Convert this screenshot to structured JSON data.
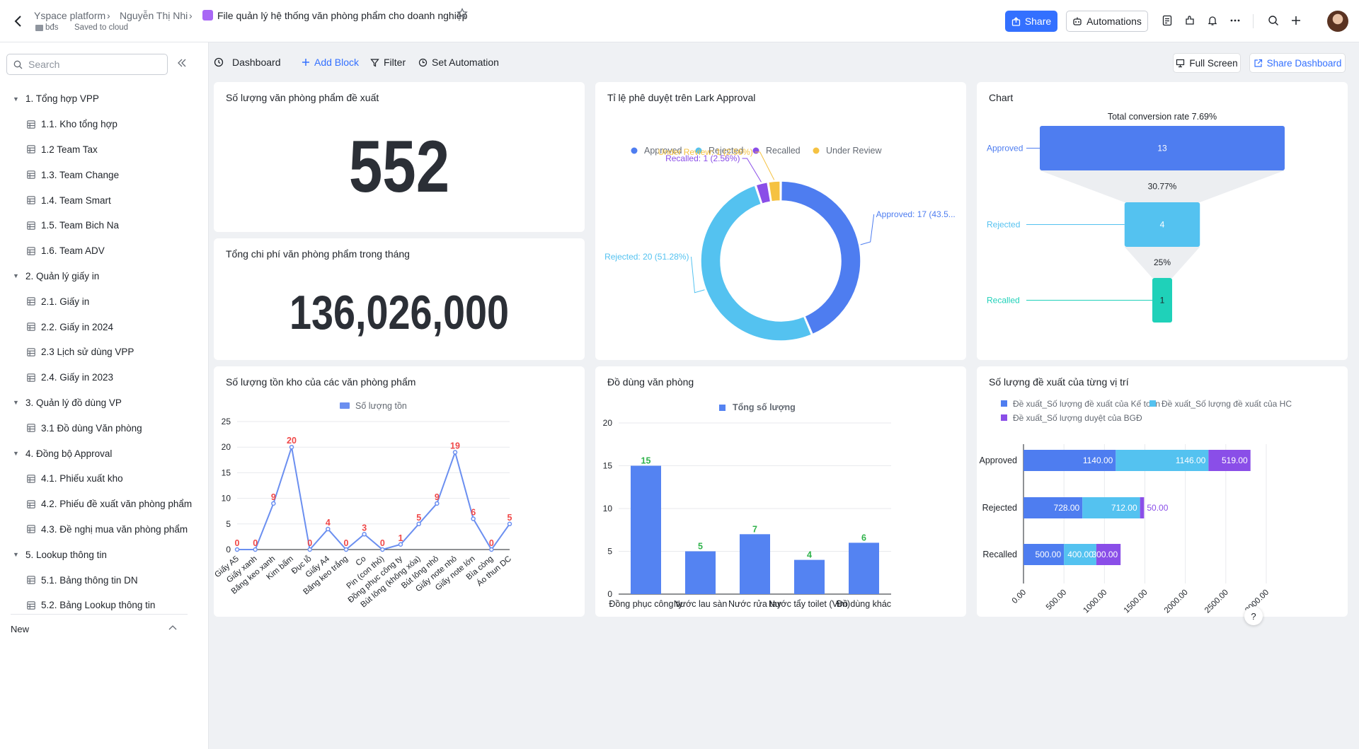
{
  "header": {
    "breadcrumb": [
      "Yspace platform",
      "Nguyễn Thị Nhi"
    ],
    "doc_title": "File quản lý hệ thống văn phòng phẩm cho doanh nghiệp",
    "folder": "bđs",
    "save_status": "Saved to cloud",
    "share_label": "Share",
    "automations_label": "Automations",
    "accent": "#3370ff"
  },
  "sidebar": {
    "search_placeholder": "Search",
    "groups": [
      {
        "label": "1. Tổng hợp VPP",
        "items": [
          "1.1. Kho tổng hợp",
          "1.2 Team Tax",
          "1.3. Team Change",
          "1.4. Team Smart",
          "1.5. Team Bich Na",
          "1.6. Team ADV"
        ]
      },
      {
        "label": "2. Quản lý giấy in",
        "items": [
          "2.1. Giấy in",
          "2.2. Giấy in 2024",
          "2.3 Lịch sử dùng VPP",
          "2.4. Giấy in 2023"
        ]
      },
      {
        "label": "3. Quản lý đồ dùng VP",
        "items": [
          "3.1 Đồ dùng Văn phòng"
        ]
      },
      {
        "label": "4. Đồng bộ Approval",
        "items": [
          "4.1. Phiếu xuất kho",
          "4.2. Phiếu đề xuất văn phòng phẩm",
          "4.3. Đề nghị mua văn phòng phẩm"
        ]
      },
      {
        "label": "5. Lookup thông tin",
        "items": [
          "5.1. Bảng thông tin DN",
          "5.2. Bảng Lookup thông tin"
        ]
      }
    ],
    "new_label": "New"
  },
  "toolbar": {
    "dashboard_label": "Dashboard",
    "add_block_label": "Add Block",
    "filter_label": "Filter",
    "set_automation_label": "Set Automation",
    "full_screen_label": "Full Screen",
    "share_dashboard_label": "Share Dashboard"
  },
  "cards": {
    "kpi1": {
      "title": "Số lượng văn phòng phẩm đề xuất",
      "value": "552"
    },
    "kpi2": {
      "title": "Tổng chi phí văn phòng phẩm trong tháng",
      "value": "136,026,000"
    },
    "donut": {
      "title": "Tỉ lệ phê duyệt trên Lark Approval"
    },
    "funnel": {
      "title": "Chart"
    },
    "line": {
      "title": "Số lượng tồn kho của các văn phòng phẩm"
    },
    "bar": {
      "title": "Đồ dùng văn phòng"
    },
    "stacked": {
      "title": "Số lượng đề xuất của từng vị trí"
    }
  },
  "chart_data": [
    {
      "type": "pie",
      "title": "Tỉ lệ phê duyệt trên Lark Approval",
      "legend_position": "top",
      "slices": [
        {
          "name": "Approved",
          "value": 17,
          "label": "Approved: 17 (43.5...",
          "color": "#4e7df0"
        },
        {
          "name": "Rejected",
          "value": 20,
          "label": "Rejected: 20 (51.28%)",
          "color": "#54c2f0"
        },
        {
          "name": "Recalled",
          "value": 1,
          "label": "Recalled: 1 (2.56%)",
          "color": "#8a4ee8"
        },
        {
          "name": "Under Review",
          "value": 1,
          "label": "Under Review: 1 (2.56%)",
          "color": "#f5c242"
        }
      ]
    },
    {
      "type": "funnel",
      "title": "Chart",
      "total_label": "Total conversion rate 7.69%",
      "stages": [
        {
          "name": "Approved",
          "value": 13,
          "color": "#4e7df0"
        },
        {
          "name": "Rejected",
          "value": 4,
          "color": "#54c2f0"
        },
        {
          "name": "Recalled",
          "value": 1,
          "color": "#1fd1b9"
        }
      ],
      "rates": [
        "30.77%",
        "25%"
      ]
    },
    {
      "type": "line",
      "title": "Số lượng tồn kho của các văn phòng phẩm",
      "legend": [
        "Số lượng tồn"
      ],
      "ylim": [
        0,
        25
      ],
      "yticks": [
        0,
        5,
        10,
        15,
        20,
        25
      ],
      "categories": [
        "Giấy A5",
        "Giấy xanh",
        "Băng keo xanh",
        "Kim bấm",
        "Đục lỗ",
        "Giấy A4",
        "Băng keo trắng",
        "Co",
        "Pin (con thỏ)",
        "Đồng phục công ty",
        "Bút lông (không xóa)",
        "Bút lông nhỏ",
        "Giấy note nhỏ",
        "Giấy note lớn",
        "Bìa còng",
        "Áo thun DC"
      ],
      "values": [
        0,
        0,
        9,
        20,
        0,
        4,
        0,
        3,
        0,
        1,
        5,
        9,
        19,
        6,
        0,
        5
      ],
      "color": "#6b8ff0",
      "label_color": "#f04848"
    },
    {
      "type": "bar",
      "title": "Đồ dùng văn phòng",
      "legend": [
        "Tổng số lượng"
      ],
      "ylim": [
        0,
        20
      ],
      "yticks": [
        0,
        5,
        10,
        15,
        20
      ],
      "categories": [
        "Đồng phục công ty",
        "Nước lau sàn",
        "Nước rửa tay",
        "Nước tẩy toilet (Vim)",
        "Đồ dùng khác"
      ],
      "values": [
        15,
        5,
        7,
        4,
        6
      ],
      "color": "#5483f2",
      "label_color": "#2fb34b"
    },
    {
      "type": "bar",
      "orientation": "horizontal",
      "stacked": true,
      "title": "Số lượng đề xuất của từng vị trí",
      "categories": [
        "Approved",
        "Rejected",
        "Recalled"
      ],
      "xlim": [
        0,
        3000
      ],
      "xticks": [
        "0.00",
        "500.00",
        "1000.00",
        "1500.00",
        "2000.00",
        "2500.00",
        "3000.00"
      ],
      "series": [
        {
          "name": "Đề xuất_Số lượng đề xuất của Kế toán",
          "values": [
            1140,
            728,
            500
          ],
          "labels": [
            "1140.00",
            "728.00",
            "500.00"
          ],
          "color": "#4e7df0"
        },
        {
          "name": "Đề xuất_Số lượng đề xuất của HC",
          "values": [
            1146,
            712,
            400
          ],
          "labels": [
            "1146.00",
            "712.00",
            "400.00"
          ],
          "color": "#54c2f0"
        },
        {
          "name": "Đề xuất_Số lượng duyệt của BGĐ",
          "values": [
            519,
            50,
            300
          ],
          "labels": [
            "519.00",
            "50.00",
            "300.00"
          ],
          "color": "#8a4ee8"
        }
      ]
    }
  ]
}
